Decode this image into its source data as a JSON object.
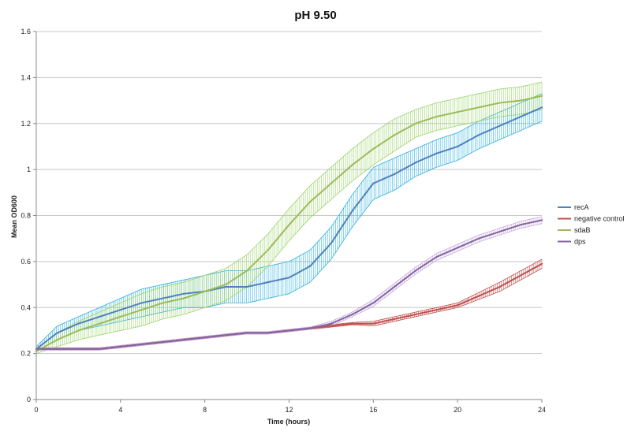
{
  "chart_data": {
    "type": "line",
    "title": "pH 9.50",
    "xlabel": "Time (hours)",
    "ylabel": "Mean OD600",
    "xlim": [
      0,
      24
    ],
    "ylim": [
      0,
      1.6
    ],
    "x_ticks": [
      0,
      4,
      8,
      12,
      16,
      20,
      24
    ],
    "y_ticks": [
      0,
      0.2,
      0.4,
      0.6,
      0.8,
      1,
      1.2,
      1.4,
      1.6
    ],
    "x_tick_labels": [
      "0",
      "4",
      "8",
      "12",
      "16",
      "20",
      "24"
    ],
    "y_tick_labels": [
      "0",
      "0.2",
      "0.4",
      "0.6",
      "0.8",
      "1",
      "1.2",
      "1.4",
      "1.6"
    ],
    "grid": "horizontal",
    "legend_position": "right",
    "error_bars": true,
    "x": [
      0,
      1,
      2,
      3,
      4,
      5,
      6,
      7,
      8,
      9,
      10,
      11,
      12,
      13,
      14,
      15,
      16,
      17,
      18,
      19,
      20,
      21,
      22,
      23,
      24
    ],
    "series": [
      {
        "name": "recA",
        "color": "#4f81bd",
        "error_color": "#2fb0dc",
        "values": [
          0.22,
          0.29,
          0.33,
          0.36,
          0.39,
          0.42,
          0.44,
          0.46,
          0.47,
          0.49,
          0.49,
          0.51,
          0.53,
          0.58,
          0.68,
          0.82,
          0.94,
          0.98,
          1.03,
          1.07,
          1.1,
          1.15,
          1.19,
          1.23,
          1.27
        ],
        "errors": [
          0.01,
          0.03,
          0.03,
          0.04,
          0.05,
          0.06,
          0.06,
          0.06,
          0.07,
          0.07,
          0.07,
          0.07,
          0.07,
          0.07,
          0.07,
          0.07,
          0.07,
          0.07,
          0.06,
          0.06,
          0.06,
          0.06,
          0.06,
          0.06,
          0.06
        ]
      },
      {
        "name": "negative control",
        "color": "#c0504d",
        "error_color": "#c0504d",
        "values": [
          0.22,
          0.22,
          0.22,
          0.22,
          0.23,
          0.24,
          0.25,
          0.26,
          0.27,
          0.28,
          0.29,
          0.29,
          0.3,
          0.31,
          0.32,
          0.33,
          0.33,
          0.35,
          0.37,
          0.39,
          0.41,
          0.45,
          0.49,
          0.54,
          0.59
        ],
        "errors": [
          0.005,
          0.005,
          0.005,
          0.005,
          0.005,
          0.005,
          0.005,
          0.005,
          0.005,
          0.005,
          0.005,
          0.005,
          0.005,
          0.005,
          0.005,
          0.005,
          0.01,
          0.01,
          0.01,
          0.01,
          0.01,
          0.015,
          0.02,
          0.02,
          0.02
        ]
      },
      {
        "name": "sdaB",
        "color": "#9bbb59",
        "error_color": "#9bd46a",
        "values": [
          0.21,
          0.26,
          0.3,
          0.33,
          0.36,
          0.39,
          0.42,
          0.44,
          0.47,
          0.5,
          0.56,
          0.65,
          0.76,
          0.86,
          0.94,
          1.02,
          1.09,
          1.15,
          1.2,
          1.23,
          1.25,
          1.27,
          1.29,
          1.3,
          1.32
        ],
        "errors": [
          0.01,
          0.03,
          0.04,
          0.05,
          0.06,
          0.07,
          0.07,
          0.07,
          0.07,
          0.07,
          0.07,
          0.07,
          0.07,
          0.07,
          0.07,
          0.07,
          0.07,
          0.07,
          0.06,
          0.06,
          0.06,
          0.06,
          0.06,
          0.06,
          0.06
        ]
      },
      {
        "name": "dps",
        "color": "#8064a2",
        "error_color": "#c9a8dc",
        "values": [
          0.22,
          0.22,
          0.22,
          0.22,
          0.23,
          0.24,
          0.25,
          0.26,
          0.27,
          0.28,
          0.29,
          0.29,
          0.3,
          0.31,
          0.33,
          0.37,
          0.42,
          0.49,
          0.56,
          0.62,
          0.66,
          0.7,
          0.73,
          0.76,
          0.78
        ],
        "errors": [
          0.005,
          0.005,
          0.005,
          0.005,
          0.005,
          0.005,
          0.005,
          0.005,
          0.005,
          0.005,
          0.005,
          0.005,
          0.005,
          0.005,
          0.01,
          0.01,
          0.015,
          0.015,
          0.015,
          0.015,
          0.015,
          0.015,
          0.015,
          0.015,
          0.015
        ]
      }
    ]
  }
}
